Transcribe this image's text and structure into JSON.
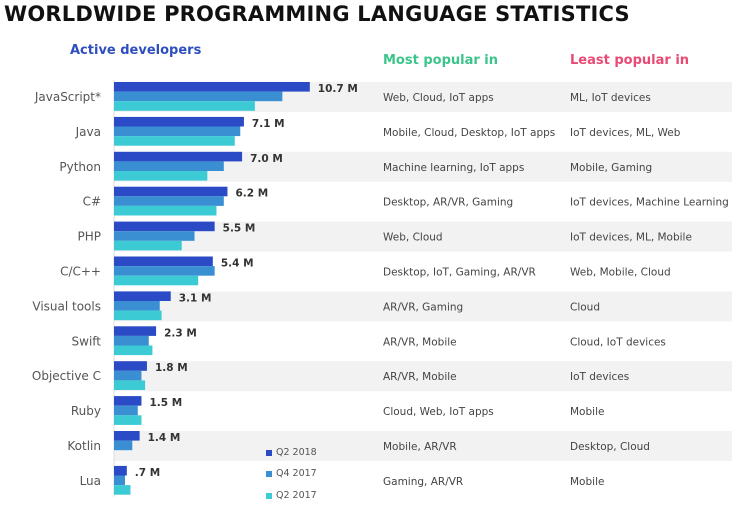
{
  "title": "WORLDWIDE PROGRAMMING LANGUAGE STATISTICS",
  "headers": {
    "active": "Active developers",
    "most": "Most popular in",
    "least": "Least popular in"
  },
  "colors": {
    "Q2 2018": "#2a4ac6",
    "Q4 2017": "#3a8fd2",
    "Q2 2017": "#3ccbd4",
    "stripe": "#f2f2f2",
    "most": "#3cc48a",
    "least": "#e84a73",
    "active": "#2f4fc0"
  },
  "chart_data": {
    "type": "bar",
    "orientation": "horizontal",
    "unit": "M",
    "categories": [
      "JavaScript*",
      "Java",
      "Python",
      "C#",
      "PHP",
      "C/C++",
      "Visual tools",
      "Swift",
      "Objective C",
      "Ruby",
      "Kotlin",
      "Lua"
    ],
    "series": [
      {
        "name": "Q2 2018",
        "values": [
          10.7,
          7.1,
          7.0,
          6.2,
          5.5,
          5.4,
          3.1,
          2.3,
          1.8,
          1.5,
          1.4,
          0.7
        ]
      },
      {
        "name": "Q4 2017",
        "values": [
          9.2,
          6.9,
          6.0,
          6.0,
          4.4,
          5.5,
          2.5,
          1.9,
          1.5,
          1.3,
          1.0,
          0.6
        ]
      },
      {
        "name": "Q2 2017",
        "values": [
          7.7,
          6.6,
          5.1,
          5.6,
          3.7,
          4.6,
          2.6,
          2.1,
          1.7,
          1.5,
          0,
          0.9
        ]
      }
    ],
    "data_labels": [
      "10.7 M",
      "7.1 M",
      "7.0 M",
      "6.2 M",
      "5.5 M",
      "5.4 M",
      "3.1 M",
      "2.3 M",
      "1.8 M",
      "1.5 M",
      "1.4 M",
      ".7 M"
    ],
    "legend": [
      "Q2 2018",
      "Q4 2017",
      "Q2 2017"
    ],
    "legend_position": "bottom-right of bars",
    "grid": false
  },
  "most_popular": [
    "Web, Cloud, IoT apps",
    "Mobile, Cloud, Desktop, IoT apps",
    "Machine learning, IoT apps",
    "Desktop, AR/VR, Gaming",
    "Web, Cloud",
    "Desktop, IoT, Gaming, AR/VR",
    "AR/VR, Gaming",
    "AR/VR, Mobile",
    "AR/VR, Mobile",
    "Cloud, Web, IoT apps",
    "Mobile, AR/VR",
    "Gaming, AR/VR"
  ],
  "least_popular": [
    "ML, IoT devices",
    "IoT devices, ML, Web",
    "Mobile, Gaming",
    "IoT devices, Machine Learning",
    "IoT devices, ML, Mobile",
    "Web, Mobile, Cloud",
    "Cloud",
    "Cloud, IoT devices",
    "IoT devices",
    "Mobile",
    "Desktop, Cloud",
    "Mobile"
  ]
}
